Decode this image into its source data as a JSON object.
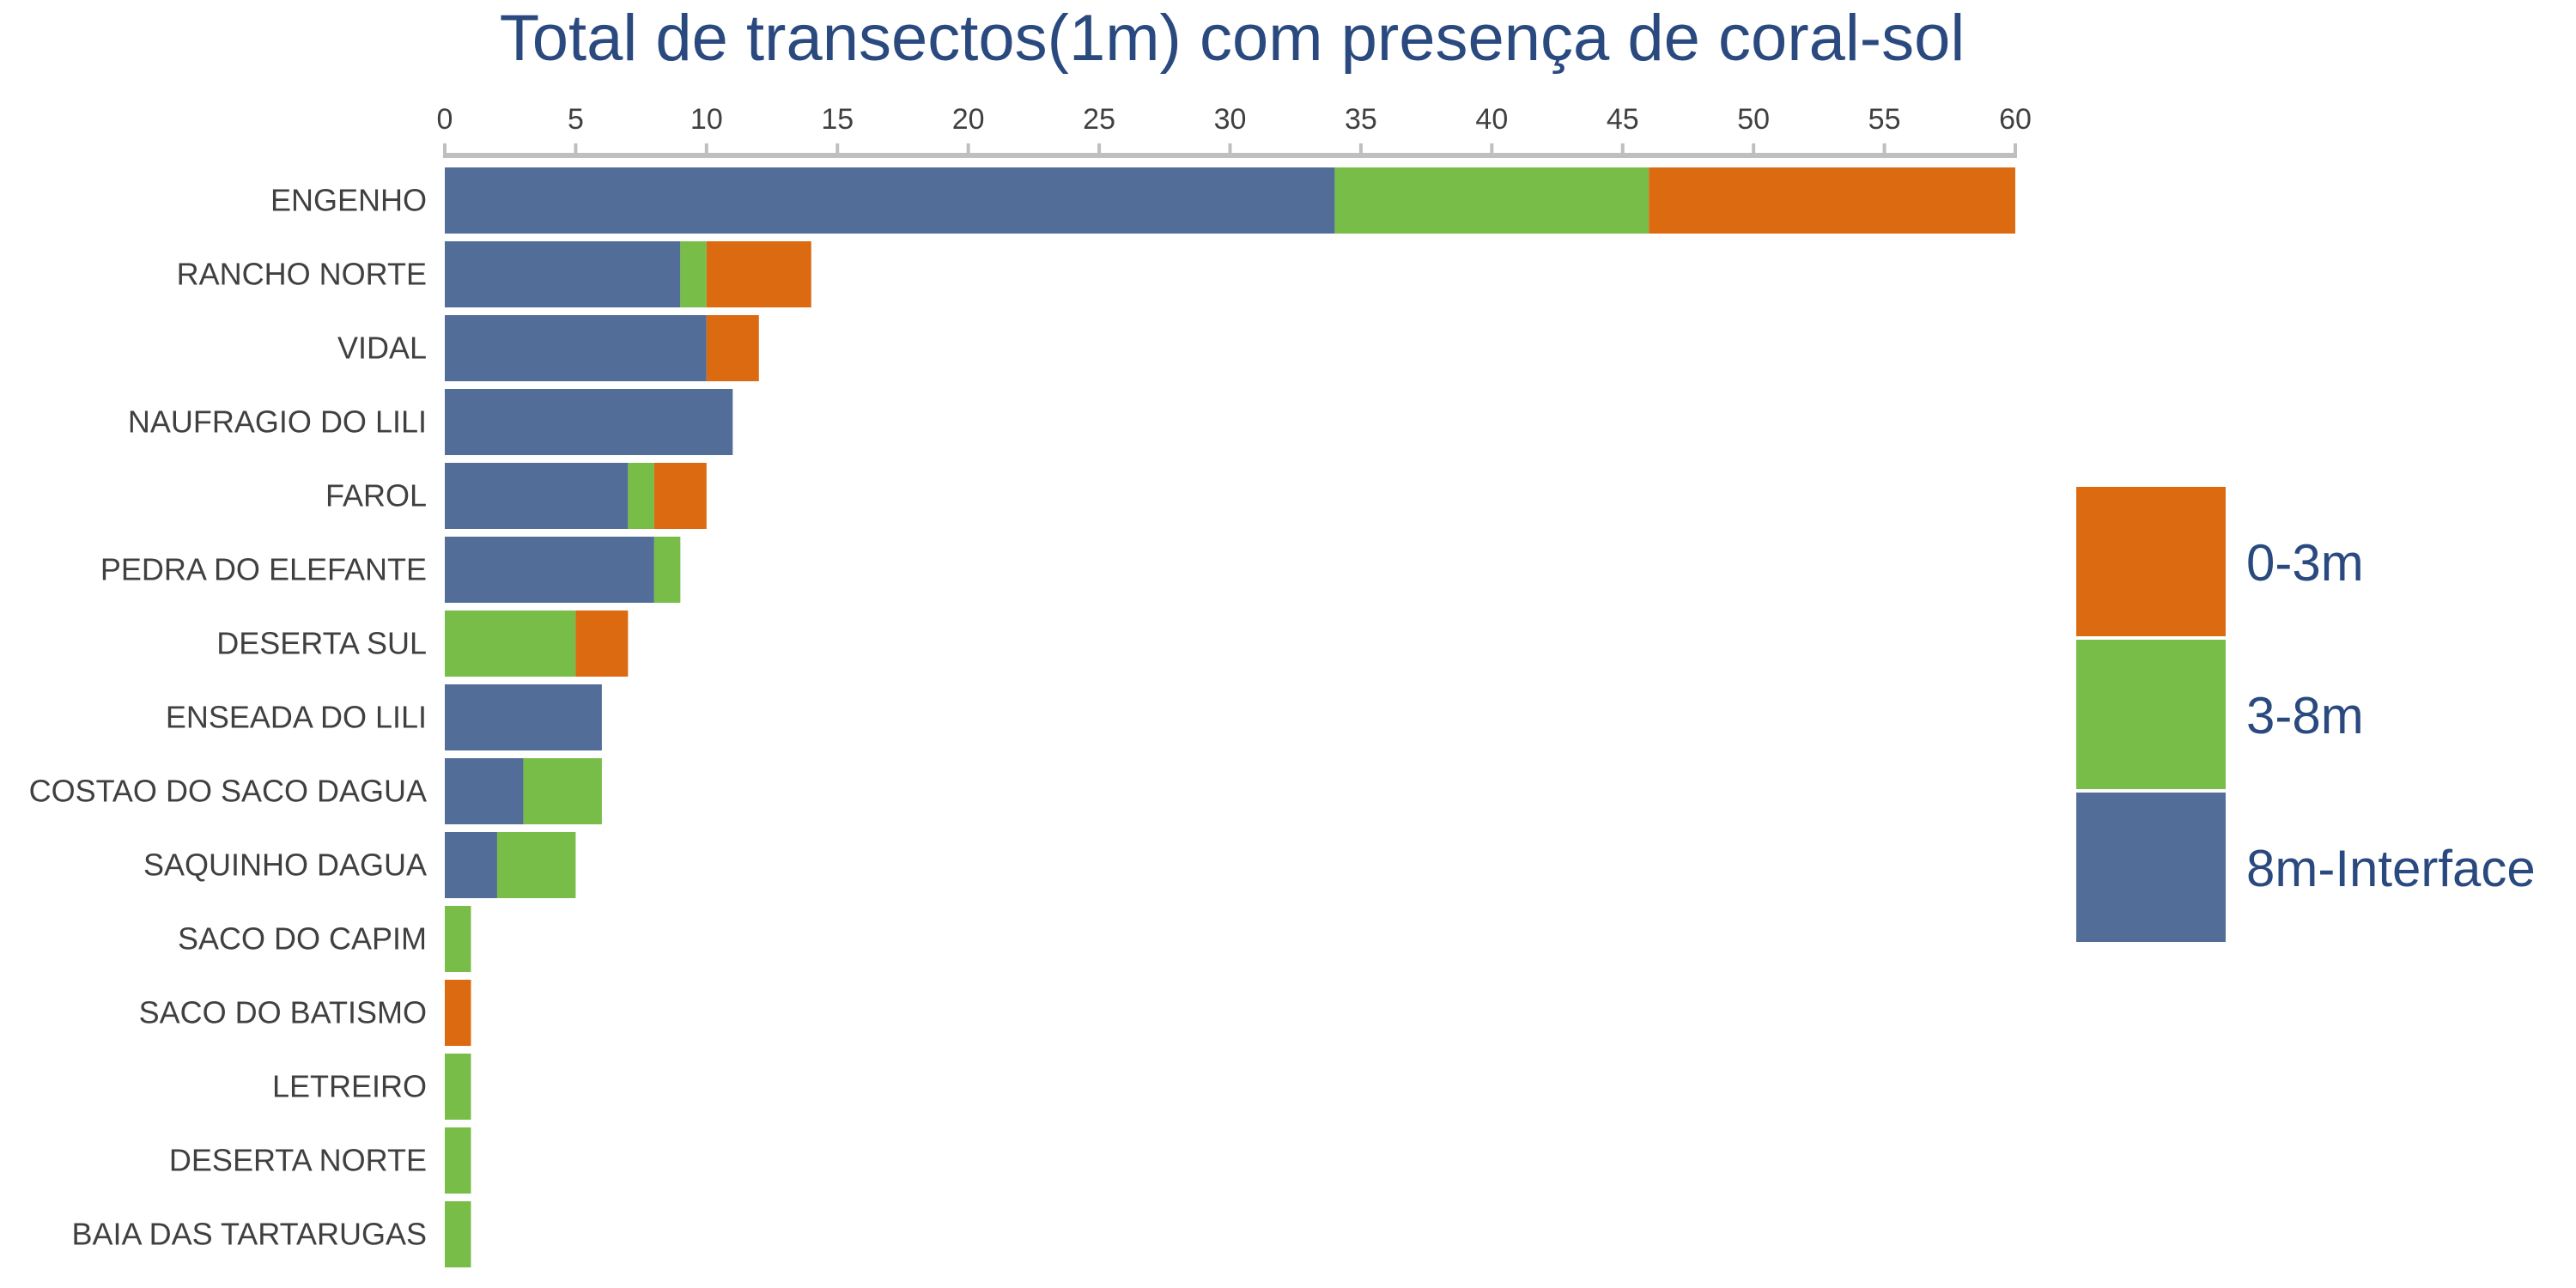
{
  "chart_data": {
    "type": "bar",
    "orientation": "horizontal",
    "stacked": true,
    "title": "Total de transectos(1m) com presença de coral-sol",
    "xlabel": "",
    "ylabel": "",
    "xlim": [
      0,
      60
    ],
    "xticks": [
      0,
      5,
      10,
      15,
      20,
      25,
      30,
      35,
      40,
      45,
      50,
      55,
      60
    ],
    "axis_position": "top",
    "grid": false,
    "legend_position": "right",
    "categories": [
      "ENGENHO",
      "RANCHO NORTE",
      "VIDAL",
      "NAUFRAGIO DO LILI",
      "FAROL",
      "PEDRA DO ELEFANTE",
      "DESERTA SUL",
      "ENSEADA DO LILI",
      "COSTAO DO SACO DAGUA",
      "SAQUINHO DAGUA",
      "SACO DO CAPIM",
      "SACO DO BATISMO",
      "LETREIRO",
      "DESERTA NORTE",
      "BAIA DAS TARTARUGAS"
    ],
    "series": [
      {
        "name": "8m-Interface",
        "color": "#536d99",
        "values": [
          34,
          9,
          10,
          11,
          7,
          8,
          0,
          6,
          3,
          2,
          0,
          0,
          0,
          0,
          0
        ]
      },
      {
        "name": "3-8m",
        "color": "#78bd48",
        "values": [
          12,
          1,
          0,
          0,
          1,
          1,
          5,
          0,
          3,
          3,
          1,
          0,
          1,
          1,
          1
        ]
      },
      {
        "name": "0-3m",
        "color": "#dc6a11",
        "values": [
          14,
          4,
          2,
          0,
          2,
          0,
          2,
          0,
          0,
          0,
          0,
          1,
          0,
          0,
          0
        ]
      }
    ],
    "legend_order": [
      "0-3m",
      "3-8m",
      "8m-Interface"
    ]
  }
}
